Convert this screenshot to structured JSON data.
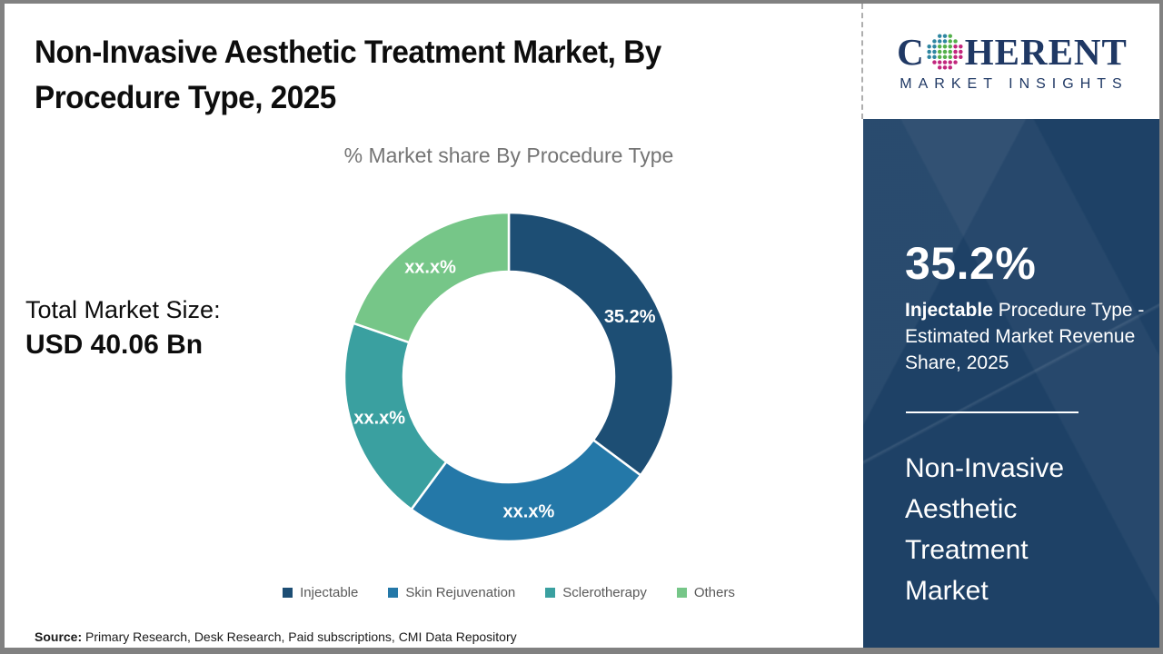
{
  "header": {
    "title": "Non-Invasive Aesthetic Treatment Market, By Procedure Type, 2025"
  },
  "logo": {
    "word_start": "C",
    "word_end": "HERENT",
    "tagline": "MARKET INSIGHTS",
    "brand_color": "#1F3864",
    "dot_colors": [
      "#2E86A1",
      "#53B04A",
      "#C2267D"
    ]
  },
  "market_size": {
    "label": "Total Market Size:",
    "value": "USD 40.06 Bn"
  },
  "chart_data": {
    "type": "pie",
    "donut": true,
    "title": "% Market share By Procedure Type",
    "categories": [
      "Injectable",
      "Skin Rejuvenation",
      "Sclerotherapy",
      "Others"
    ],
    "values": [
      35.2,
      24.9,
      20.2,
      19.7
    ],
    "slice_labels": [
      "35.2%",
      "xx.x%",
      "xx.x%",
      "xx.x%"
    ],
    "colors": [
      "#1D4E74",
      "#2478A8",
      "#3AA0A0",
      "#76C688"
    ],
    "legend_position": "bottom",
    "start_angle_deg": 0,
    "direction": "clockwise"
  },
  "sidebar": {
    "stat": "35.2%",
    "desc_bold": "Injectable",
    "desc_rest": " Procedure Type - Estimated Market Revenue Share, 2025",
    "market_name": "Non-Invasive Aesthetic Treatment Market",
    "background_color": "#1E4166"
  },
  "source": {
    "label": "Source:",
    "text": " Primary Research, Desk Research, Paid subscriptions, CMI Data Repository"
  }
}
